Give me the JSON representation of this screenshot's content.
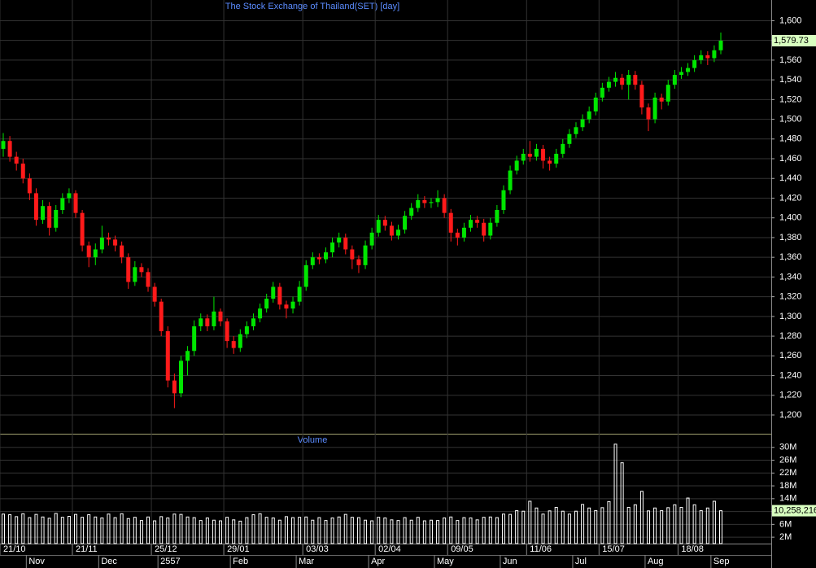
{
  "chart_data": {
    "type": "candlestick",
    "title": "The Stock Exchange of Thailand(SET) [day]",
    "categories": [
      "21/10",
      null,
      null,
      null,
      null,
      null,
      null,
      null,
      null,
      null,
      null,
      "21/11",
      null,
      null,
      null,
      null,
      null,
      null,
      null,
      null,
      null,
      null,
      null,
      "25/12",
      null,
      null,
      null,
      null,
      null,
      null,
      null,
      null,
      null,
      null,
      "29/01",
      null,
      null,
      null,
      null,
      null,
      null,
      null,
      null,
      null,
      null,
      null,
      "03/03",
      null,
      null,
      null,
      null,
      null,
      null,
      null,
      null,
      null,
      null,
      "02/04",
      null,
      null,
      null,
      null,
      null,
      null,
      null,
      null,
      null,
      null,
      "09/05",
      null,
      null,
      null,
      null,
      null,
      null,
      null,
      null,
      null,
      null,
      null,
      "11/06",
      null,
      null,
      null,
      null,
      null,
      null,
      null,
      null,
      null,
      null,
      "15/07",
      null,
      null,
      null,
      null,
      null,
      null,
      null,
      null,
      null,
      null,
      null,
      "18/08",
      null,
      null,
      null,
      null,
      null,
      null
    ],
    "periods": [
      null,
      null,
      null,
      null,
      "Nov",
      null,
      null,
      null,
      null,
      null,
      null,
      null,
      null,
      null,
      null,
      "Dec",
      null,
      null,
      null,
      null,
      null,
      null,
      null,
      null,
      "2557",
      null,
      null,
      null,
      null,
      null,
      null,
      null,
      null,
      null,
      null,
      "Feb",
      null,
      null,
      null,
      null,
      null,
      null,
      null,
      null,
      null,
      "Mar",
      null,
      null,
      null,
      null,
      null,
      null,
      null,
      null,
      null,
      null,
      "Apr",
      null,
      null,
      null,
      null,
      null,
      null,
      null,
      null,
      null,
      "May",
      null,
      null,
      null,
      null,
      null,
      null,
      null,
      null,
      null,
      "Jun",
      null,
      null,
      null,
      null,
      null,
      null,
      null,
      null,
      null,
      null,
      "Jul",
      null,
      null,
      null,
      null,
      null,
      null,
      null,
      null,
      null,
      null,
      "Aug",
      null,
      null,
      null,
      null,
      null,
      null,
      null,
      null,
      null,
      "Sep",
      null
    ],
    "open": [
      1470,
      1478,
      1462,
      1455,
      1440,
      1425,
      1398,
      1412,
      1390,
      1408,
      1420,
      1425,
      1405,
      1372,
      1360,
      1368,
      1380,
      1378,
      1372,
      1360,
      1335,
      1350,
      1345,
      1330,
      1315,
      1285,
      1235,
      1222,
      1255,
      1265,
      1290,
      1298,
      1290,
      1305,
      1295,
      1275,
      1268,
      1282,
      1290,
      1298,
      1308,
      1318,
      1330,
      1312,
      1308,
      1315,
      1330,
      1352,
      1360,
      1358,
      1365,
      1375,
      1380,
      1368,
      1358,
      1352,
      1372,
      1385,
      1398,
      1392,
      1382,
      1388,
      1402,
      1410,
      1418,
      1415,
      1416,
      1420,
      1405,
      1385,
      1380,
      1390,
      1398,
      1395,
      1382,
      1395,
      1408,
      1428,
      1448,
      1458,
      1465,
      1462,
      1470,
      1458,
      1455,
      1465,
      1475,
      1485,
      1492,
      1500,
      1508,
      1522,
      1532,
      1538,
      1542,
      1535,
      1545,
      1535,
      1512,
      1500,
      1522,
      1518,
      1535,
      1545,
      1548,
      1552,
      1560,
      1565,
      1562,
      1570
    ],
    "high": [
      1486,
      1483,
      1467,
      1460,
      1445,
      1430,
      1418,
      1416,
      1413,
      1425,
      1430,
      1428,
      1408,
      1376,
      1374,
      1392,
      1385,
      1382,
      1376,
      1364,
      1356,
      1354,
      1349,
      1334,
      1318,
      1290,
      1242,
      1260,
      1270,
      1296,
      1303,
      1302,
      1320,
      1308,
      1298,
      1280,
      1287,
      1295,
      1303,
      1313,
      1323,
      1335,
      1334,
      1316,
      1320,
      1336,
      1357,
      1365,
      1364,
      1370,
      1380,
      1385,
      1384,
      1372,
      1362,
      1377,
      1390,
      1403,
      1402,
      1396,
      1393,
      1407,
      1415,
      1424,
      1422,
      1420,
      1428,
      1424,
      1409,
      1389,
      1395,
      1403,
      1402,
      1399,
      1400,
      1413,
      1433,
      1453,
      1463,
      1470,
      1478,
      1475,
      1474,
      1462,
      1470,
      1480,
      1490,
      1497,
      1505,
      1513,
      1527,
      1537,
      1543,
      1548,
      1546,
      1550,
      1549,
      1539,
      1516,
      1527,
      1526,
      1540,
      1550,
      1553,
      1557,
      1565,
      1570,
      1569,
      1575,
      1588
    ],
    "low": [
      1462,
      1457,
      1448,
      1435,
      1418,
      1392,
      1394,
      1382,
      1386,
      1404,
      1415,
      1400,
      1366,
      1350,
      1352,
      1364,
      1372,
      1366,
      1354,
      1328,
      1331,
      1340,
      1325,
      1310,
      1280,
      1228,
      1207,
      1218,
      1240,
      1260,
      1285,
      1285,
      1286,
      1290,
      1268,
      1262,
      1264,
      1278,
      1286,
      1294,
      1304,
      1314,
      1307,
      1298,
      1303,
      1311,
      1326,
      1348,
      1353,
      1354,
      1360,
      1370,
      1363,
      1348,
      1344,
      1348,
      1368,
      1381,
      1387,
      1377,
      1378,
      1384,
      1398,
      1406,
      1410,
      1410,
      1411,
      1400,
      1376,
      1372,
      1376,
      1386,
      1390,
      1376,
      1378,
      1391,
      1404,
      1424,
      1444,
      1454,
      1457,
      1458,
      1450,
      1448,
      1451,
      1461,
      1471,
      1481,
      1488,
      1496,
      1504,
      1518,
      1528,
      1533,
      1530,
      1520,
      1530,
      1505,
      1488,
      1496,
      1510,
      1514,
      1531,
      1541,
      1544,
      1548,
      1556,
      1555,
      1558,
      1566
    ],
    "close": [
      1478,
      1462,
      1455,
      1440,
      1425,
      1398,
      1412,
      1390,
      1408,
      1420,
      1425,
      1405,
      1372,
      1360,
      1368,
      1380,
      1378,
      1372,
      1360,
      1335,
      1350,
      1345,
      1330,
      1315,
      1285,
      1235,
      1222,
      1255,
      1265,
      1290,
      1298,
      1290,
      1305,
      1295,
      1275,
      1268,
      1282,
      1290,
      1298,
      1308,
      1318,
      1330,
      1312,
      1308,
      1315,
      1330,
      1352,
      1360,
      1358,
      1365,
      1375,
      1380,
      1368,
      1358,
      1352,
      1372,
      1385,
      1398,
      1392,
      1382,
      1388,
      1402,
      1410,
      1418,
      1415,
      1416,
      1420,
      1405,
      1385,
      1380,
      1390,
      1398,
      1395,
      1382,
      1395,
      1408,
      1428,
      1448,
      1458,
      1465,
      1462,
      1470,
      1458,
      1455,
      1465,
      1475,
      1485,
      1492,
      1500,
      1508,
      1522,
      1532,
      1538,
      1542,
      1535,
      1545,
      1535,
      1512,
      1500,
      1522,
      1518,
      1535,
      1545,
      1548,
      1552,
      1560,
      1565,
      1562,
      1570,
      1579.73
    ],
    "up_color": "#00e600",
    "down_color": "#ff1a1a",
    "ylim": [
      1181,
      1621
    ],
    "yticks": [
      {
        "value": 1200,
        "label": "1,200"
      },
      {
        "value": 1220,
        "label": "1,220"
      },
      {
        "value": 1240,
        "label": "1,240"
      },
      {
        "value": 1260,
        "label": "1,260"
      },
      {
        "value": 1280,
        "label": "1,280"
      },
      {
        "value": 1300,
        "label": "1,300"
      },
      {
        "value": 1320,
        "label": "1,320"
      },
      {
        "value": 1340,
        "label": "1,340"
      },
      {
        "value": 1360,
        "label": "1,360"
      },
      {
        "value": 1380,
        "label": "1,380"
      },
      {
        "value": 1400,
        "label": "1,400"
      },
      {
        "value": 1420,
        "label": "1,420"
      },
      {
        "value": 1440,
        "label": "1,440"
      },
      {
        "value": 1460,
        "label": "1,460"
      },
      {
        "value": 1480,
        "label": "1,480"
      },
      {
        "value": 1500,
        "label": "1,500"
      },
      {
        "value": 1520,
        "label": "1,520"
      },
      {
        "value": 1540,
        "label": "1,540"
      },
      {
        "value": 1560,
        "label": "1,560"
      },
      {
        "value": 1580,
        "label": "1,580"
      },
      {
        "value": 1600,
        "label": "1,600"
      }
    ],
    "grid": true,
    "last_value": {
      "value": 1579.73,
      "label": "1,579.73"
    },
    "volume": {
      "type": "bar",
      "title": "Volume",
      "color": "#ffffff",
      "values": [
        9200000,
        9000000,
        8400000,
        9300000,
        8100000,
        9100000,
        8300000,
        7900000,
        9400000,
        8200000,
        8500000,
        9100000,
        8200000,
        9000000,
        8300000,
        8000000,
        9200000,
        8100000,
        9300000,
        7800000,
        8200000,
        7200000,
        8300000,
        7100000,
        8400000,
        8000000,
        9200000,
        9100000,
        8300000,
        8100000,
        7200000,
        8000000,
        7300000,
        7100000,
        8200000,
        7400000,
        7000000,
        8100000,
        9000000,
        9300000,
        8200000,
        8000000,
        7300000,
        8400000,
        8100000,
        8200000,
        8300000,
        7300000,
        8100000,
        7200000,
        8000000,
        8300000,
        9100000,
        8200000,
        8100000,
        7300000,
        7100000,
        8200000,
        8000000,
        7400000,
        7200000,
        8100000,
        7300000,
        8200000,
        7100000,
        7300000,
        7200000,
        8000000,
        8300000,
        7200000,
        8100000,
        8000000,
        7400000,
        8200000,
        8300000,
        8100000,
        9200000,
        9100000,
        10300000,
        10100000,
        13200000,
        11100000,
        9200000,
        10200000,
        11300000,
        10100000,
        9200000,
        10100000,
        12200000,
        11100000,
        10300000,
        11200000,
        13100000,
        31000000,
        25200000,
        11300000,
        12100000,
        16300000,
        10200000,
        11100000,
        10300000,
        11200000,
        12100000,
        11300000,
        14200000,
        12100000,
        10300000,
        11100000,
        13200000,
        10258216
      ],
      "ylim": [
        0,
        34000000
      ],
      "yticks": [
        {
          "value": 2000000,
          "label": "2M"
        },
        {
          "value": 6000000,
          "label": "6M"
        },
        {
          "value": 10000000,
          "label": "10M"
        },
        {
          "value": 14000000,
          "label": "14M"
        },
        {
          "value": 18000000,
          "label": "18M"
        },
        {
          "value": 22000000,
          "label": "22M"
        },
        {
          "value": 26000000,
          "label": "26M"
        },
        {
          "value": 30000000,
          "label": "30M"
        }
      ],
      "last_value": {
        "value": 10258216,
        "label": "10,258,216"
      }
    }
  }
}
